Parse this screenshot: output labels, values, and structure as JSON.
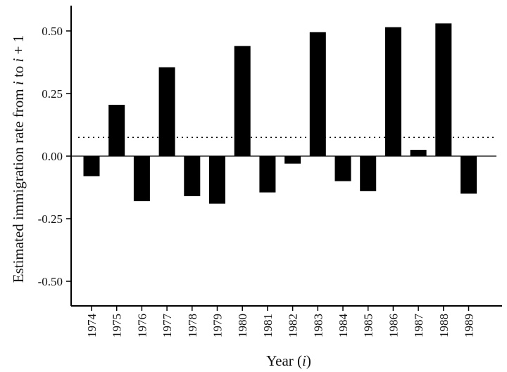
{
  "chart_data": {
    "type": "bar",
    "categories": [
      "1974",
      "1975",
      "1976",
      "1977",
      "1978",
      "1979",
      "1980",
      "1981",
      "1982",
      "1983",
      "1984",
      "1985",
      "1986",
      "1987",
      "1988",
      "1989"
    ],
    "values": [
      -0.08,
      0.205,
      -0.18,
      0.355,
      -0.16,
      -0.19,
      0.44,
      -0.145,
      -0.03,
      0.495,
      -0.1,
      -0.14,
      0.515,
      0.025,
      0.53,
      -0.15
    ],
    "xlabel": "Year (i)",
    "ylabel": "Estimated immigration rate from i to i + 1",
    "ylim": [
      -0.6,
      0.6
    ],
    "yticks": [
      -0.5,
      -0.25,
      0.0,
      0.25,
      0.5
    ],
    "ytick_labels": [
      "-0.50",
      "-0.25",
      "0.00",
      "0.25",
      "0.50"
    ],
    "mean_line": 0.075,
    "bar_color": "#000000",
    "grid": false
  }
}
